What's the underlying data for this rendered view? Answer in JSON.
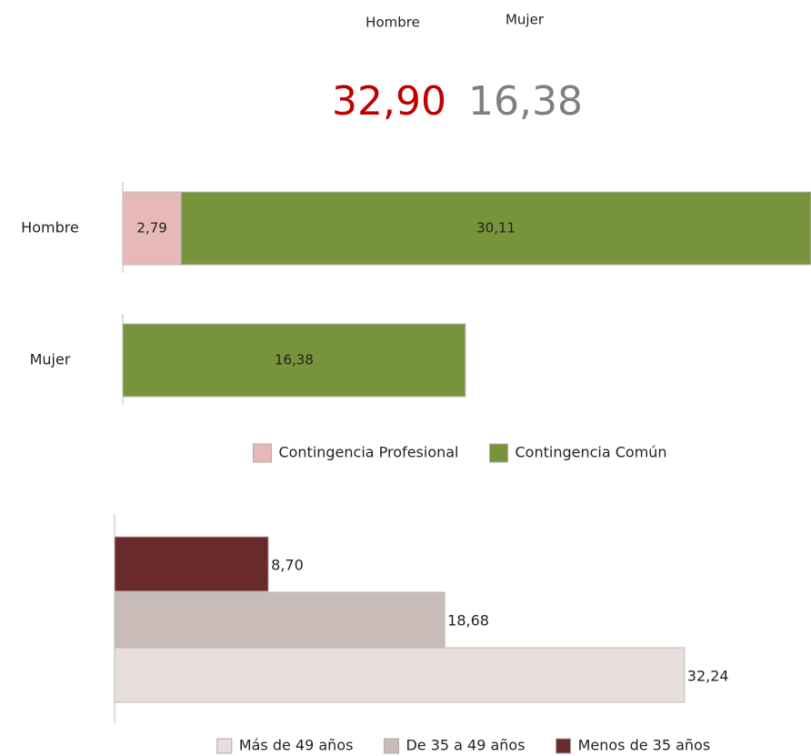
{
  "summary": {
    "labels": [
      "Hombre",
      "Mujer"
    ],
    "values": [
      "32,90",
      "16,38"
    ]
  },
  "chart_data": [
    {
      "type": "bar",
      "orientation": "horizontal",
      "stacked": true,
      "categories": [
        "Hombre",
        "Mujer"
      ],
      "series": [
        {
          "name": "Contingencia Profesional",
          "color": "#e6b9b8",
          "values": [
            2.79,
            null
          ],
          "value_labels": [
            "2,79",
            null
          ]
        },
        {
          "name": "Contingencia Común",
          "color": "#77933c",
          "values": [
            30.11,
            16.38
          ],
          "value_labels": [
            "30,11",
            "16,38"
          ]
        }
      ],
      "xlim": [
        0,
        32.9
      ],
      "legend": "bottom"
    },
    {
      "type": "bar",
      "orientation": "horizontal",
      "stacked": false,
      "categories": [
        null
      ],
      "series": [
        {
          "name": "Más de 49 años",
          "color": "#e8dfdd",
          "values": [
            32.24
          ],
          "value_labels": [
            "32,24"
          ]
        },
        {
          "name": "De 35 a 49 años",
          "color": "#c9bbb8",
          "values": [
            18.68
          ],
          "value_labels": [
            "18,68"
          ]
        },
        {
          "name": "Menos de 35 años",
          "color": "#6b2a2a",
          "values": [
            8.7
          ],
          "value_labels": [
            "8,70"
          ]
        }
      ],
      "xlim": [
        0,
        39.4
      ],
      "legend": "bottom"
    }
  ]
}
